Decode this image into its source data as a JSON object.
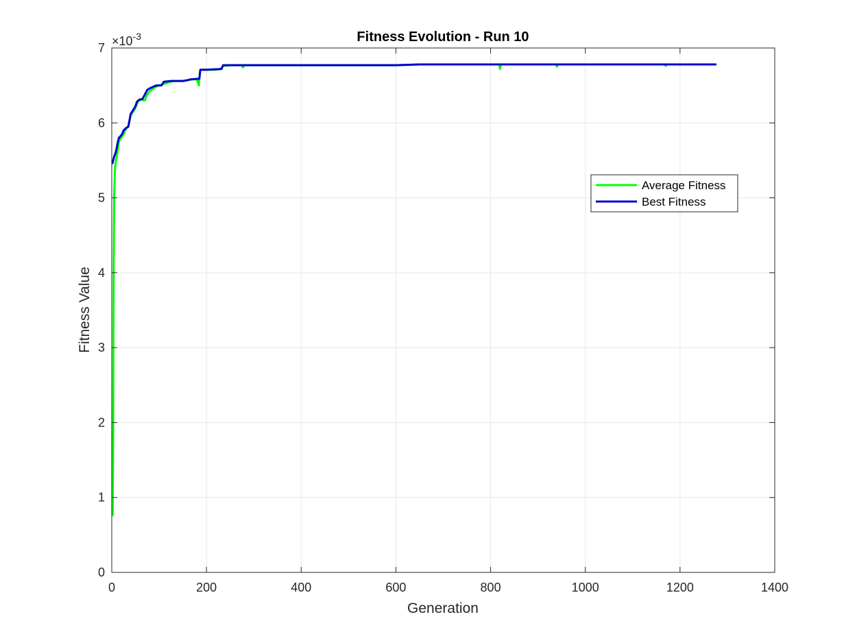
{
  "chart_data": {
    "type": "line",
    "title": "Fitness Evolution - Run 10",
    "xlabel": "Generation",
    "ylabel": "Fitness Value",
    "xlim": [
      0,
      1400
    ],
    "ylim": [
      0,
      7
    ],
    "y_exponent_label": "×10",
    "y_exponent_power": "-3",
    "xticks": [
      0,
      200,
      400,
      600,
      800,
      1000,
      1200,
      1400
    ],
    "yticks": [
      0,
      1,
      2,
      3,
      4,
      5,
      6,
      7
    ],
    "grid": true,
    "legend_position": "upper-right inside",
    "colors": {
      "average": "#00ff00",
      "best": "#0000cc",
      "grid": "#e6e6e6",
      "axis": "#262626"
    },
    "series": [
      {
        "name": "Average Fitness",
        "x": [
          1,
          2,
          3,
          4,
          5,
          7,
          9,
          12,
          15,
          20,
          25,
          30,
          35,
          40,
          45,
          50,
          55,
          60,
          70,
          75,
          80,
          90,
          100,
          110,
          120,
          130,
          140,
          150,
          160,
          170,
          180,
          184,
          186,
          188,
          200,
          220,
          230,
          235,
          250,
          275,
          277,
          280,
          300,
          400,
          500,
          600,
          650,
          700,
          800,
          818,
          820,
          822,
          900,
          938,
          940,
          942,
          1000,
          1100,
          1168,
          1170,
          1172,
          1200,
          1277
        ],
        "y": [
          0.75,
          0.78,
          2.0,
          4.0,
          5.0,
          5.4,
          5.5,
          5.6,
          5.75,
          5.8,
          5.85,
          5.92,
          5.96,
          6.1,
          6.15,
          6.2,
          6.28,
          6.31,
          6.3,
          6.38,
          6.42,
          6.47,
          6.5,
          6.52,
          6.54,
          6.56,
          6.56,
          6.56,
          6.57,
          6.58,
          6.58,
          6.5,
          6.68,
          6.71,
          6.71,
          6.71,
          6.72,
          6.76,
          6.77,
          6.77,
          6.74,
          6.77,
          6.77,
          6.77,
          6.77,
          6.77,
          6.78,
          6.78,
          6.78,
          6.78,
          6.72,
          6.78,
          6.78,
          6.78,
          6.75,
          6.78,
          6.78,
          6.78,
          6.78,
          6.76,
          6.78,
          6.78,
          6.78
        ]
      },
      {
        "name": "Best Fitness",
        "x": [
          1,
          5,
          8,
          10,
          12,
          15,
          18,
          22,
          25,
          30,
          35,
          40,
          43,
          45,
          48,
          50,
          53,
          58,
          65,
          75,
          80,
          90,
          95,
          105,
          110,
          125,
          140,
          150,
          160,
          165,
          185,
          187,
          200,
          232,
          235,
          300,
          400,
          500,
          600,
          650,
          700,
          800,
          900,
          1000,
          1100,
          1200,
          1277
        ],
        "y": [
          5.45,
          5.55,
          5.6,
          5.65,
          5.72,
          5.8,
          5.82,
          5.85,
          5.9,
          5.93,
          5.95,
          6.12,
          6.15,
          6.17,
          6.2,
          6.22,
          6.28,
          6.31,
          6.32,
          6.44,
          6.46,
          6.49,
          6.5,
          6.5,
          6.55,
          6.56,
          6.56,
          6.56,
          6.57,
          6.58,
          6.59,
          6.71,
          6.71,
          6.72,
          6.77,
          6.77,
          6.77,
          6.77,
          6.77,
          6.78,
          6.78,
          6.78,
          6.78,
          6.78,
          6.78,
          6.78,
          6.78
        ]
      }
    ]
  }
}
